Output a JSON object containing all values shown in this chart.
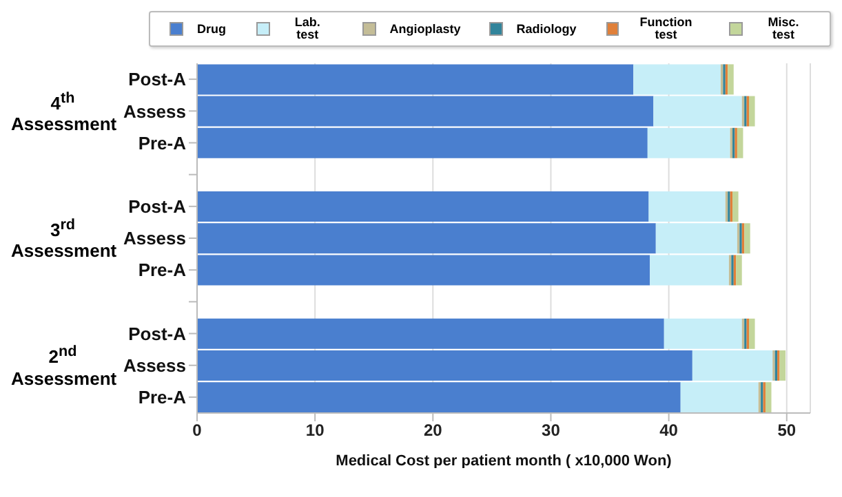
{
  "chart_data": {
    "type": "bar",
    "orientation": "horizontal",
    "stacked": true,
    "xlabel": "Medical Cost per patient month  ( x10,000 Won)",
    "categories": [
      "Post-A",
      "Assess",
      "Pre-A",
      null,
      "Post-A",
      "Assess",
      "Pre-A",
      null,
      "Post-A",
      "Assess",
      "Pre-A"
    ],
    "series": [
      {
        "name": "Drug",
        "color": "#4a7fcf",
        "values": [
          37.0,
          38.7,
          38.2,
          null,
          38.3,
          38.9,
          38.4,
          null,
          39.6,
          42.0,
          41.0
        ]
      },
      {
        "name": "Lab. test",
        "color": "#c6eef8",
        "values": [
          7.4,
          7.5,
          7.0,
          null,
          6.5,
          6.9,
          6.7,
          null,
          6.6,
          6.8,
          6.6
        ]
      },
      {
        "name": "Angioplasty",
        "color": "#c4bd97",
        "values": [
          0.2,
          0.2,
          0.2,
          null,
          0.2,
          0.2,
          0.2,
          null,
          0.2,
          0.2,
          0.2
        ]
      },
      {
        "name": "Radiology",
        "color": "#31849b",
        "values": [
          0.2,
          0.2,
          0.2,
          null,
          0.2,
          0.2,
          0.2,
          null,
          0.2,
          0.2,
          0.2
        ]
      },
      {
        "name": "Function test",
        "color": "#e0803a",
        "values": [
          0.2,
          0.2,
          0.2,
          null,
          0.2,
          0.2,
          0.2,
          null,
          0.2,
          0.2,
          0.2
        ]
      },
      {
        "name": "Misc. test",
        "color": "#c3d69b",
        "values": [
          0.5,
          0.5,
          0.5,
          null,
          0.5,
          0.5,
          0.5,
          null,
          0.5,
          0.5,
          0.5
        ]
      }
    ],
    "annotations": [
      "4$^{th}$ Assessment",
      "3$^{rd}$ Assessment",
      "2$^{nd}$ Assessment"
    ],
    "xlim": [
      0,
      52
    ],
    "xticks": [
      0,
      10,
      20,
      30,
      40,
      50
    ],
    "grid": "x",
    "legend": "top"
  }
}
